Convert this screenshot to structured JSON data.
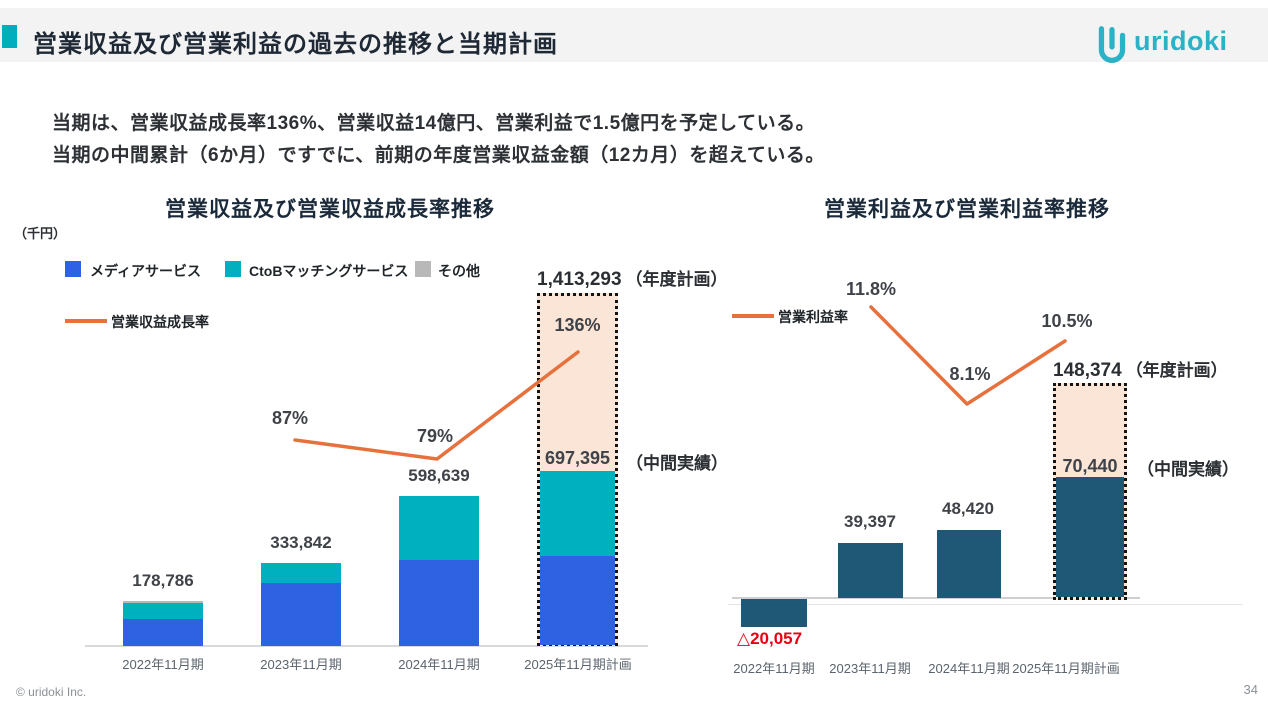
{
  "slide": {
    "title": "営業収益及び営業利益の過去の推移と当期計画",
    "logo_text": "uridoki",
    "subtitle_line1": "当期は、営業収益成長率136%、営業収益14億円、営業利益で1.5億円を予定している。",
    "subtitle_line2": "当期の中間累計（6か月）ですでに、前期の年度営業収益金額（12カ月）を超えている。",
    "footer_copyright": "© uridoki Inc.",
    "page_number": "34"
  },
  "colors": {
    "accent_teal": "#00aebe",
    "logo_teal": "#2ab2c6",
    "media_blue": "#2e62e3",
    "ctob_teal": "#00b0bf",
    "other_gray": "#b8b8b8",
    "profit_dark": "#1e5876",
    "growth_orange": "#e7713d",
    "plan_box_fill": "#fbe5d6",
    "negative_red": "#e60012",
    "header_band": "#f3f3f3"
  },
  "chart_data": [
    {
      "type": "bar",
      "subtype": "stacked-with-line",
      "title": "営業収益及び営業収益成長率推移",
      "unit_label": "（千円）",
      "categories": [
        "2022年11月期",
        "2023年11月期",
        "2024年11月期",
        "2025年11月期計画"
      ],
      "series": [
        {
          "name": "メディアサービス",
          "color": "#2e62e3",
          "values": [
            110000,
            252000,
            346000,
            355000
          ],
          "note": "segment values estimated from pixels"
        },
        {
          "name": "CtoBマッチングサービス",
          "color": "#00b0bf",
          "values": [
            61786,
            81842,
            252639,
            342395
          ],
          "note": "segment values estimated from pixels"
        },
        {
          "name": "その他",
          "color": "#b8b8b8",
          "values": [
            7000,
            0,
            0,
            0
          ],
          "note": "segment values estimated from pixels"
        }
      ],
      "totals": [
        178786,
        333842,
        598639,
        697395
      ],
      "total_labels": [
        "178,786",
        "333,842",
        "598,639",
        "697,395"
      ],
      "growth_line": {
        "name": "営業収益成長率",
        "color": "#e7713d",
        "values_pct": [
          null,
          87,
          79,
          136
        ],
        "labels": [
          "87%",
          "79%",
          "136%"
        ]
      },
      "plan_2025": {
        "annual_plan_value": 1413293,
        "annual_plan_label": "1,413,293",
        "annual_plan_note": "（年度計画）",
        "interim_actual_value": 697395,
        "interim_note": "（中間実績）"
      },
      "ylim": [
        0,
        1500000
      ],
      "grid": false,
      "legend_position": "top-left"
    },
    {
      "type": "bar",
      "subtype": "single-with-line",
      "title": "営業利益及び営業利益率推移",
      "categories": [
        "2022年11月期",
        "2023年11月期",
        "2024年11月期",
        "2025年11月期計画"
      ],
      "values": [
        -20057,
        39397,
        48420,
        70440
      ],
      "value_labels": [
        "△20,057",
        "39,397",
        "48,420",
        "70,440"
      ],
      "bar_color": "#1e5876",
      "margin_line": {
        "name": "営業利益率",
        "color": "#e7713d",
        "values_pct": [
          null,
          11.8,
          8.1,
          10.5
        ],
        "labels": [
          "11.8%",
          "8.1%",
          "10.5%"
        ]
      },
      "plan_2025": {
        "annual_plan_value": 148374,
        "annual_plan_label": "148,374",
        "annual_plan_note": "（年度計画）",
        "interim_actual_value": 70440,
        "interim_actual_label": "70,440",
        "interim_note": "（中間実績）"
      },
      "ylim": [
        -25000,
        160000
      ],
      "grid": false,
      "legend_position": "top-left"
    }
  ]
}
